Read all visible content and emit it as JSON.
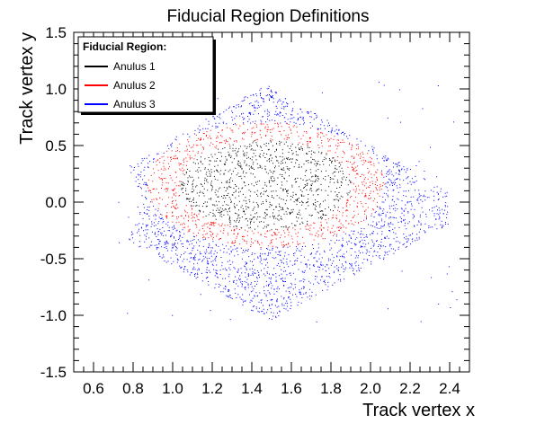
{
  "chart_data": {
    "type": "scatter",
    "title": "Fiducial Region Definitions",
    "xlabel": "Track vertex x",
    "ylabel": "Track vertex y",
    "xlim": [
      0.5,
      2.5
    ],
    "ylim": [
      -1.5,
      1.5
    ],
    "xticks": [
      "0.6",
      "0.8",
      "1.0",
      "1.2",
      "1.4",
      "1.6",
      "1.8",
      "2.0",
      "2.2",
      "2.4"
    ],
    "yticks": [
      "1.5",
      "1.0",
      "0.5",
      "0.0",
      "-0.5",
      "-1.0",
      "-1.5"
    ],
    "grid": false,
    "legend": {
      "title": "Fiducial Region:",
      "placement": "top-left",
      "entries": [
        {
          "name": "Anulus 1",
          "color": "#000000"
        },
        {
          "name": "Anulus 2",
          "color": "#ff0000"
        },
        {
          "name": "Anulus 3",
          "color": "#0000ff"
        }
      ]
    },
    "series": [
      {
        "name": "Anulus 3",
        "color": "#0000ff",
        "region": "polygon",
        "vertices": [
          [
            0.76,
            0.3
          ],
          [
            1.47,
            1.04
          ],
          [
            2.39,
            0.1
          ],
          [
            2.39,
            -0.2
          ],
          [
            1.49,
            -1.05
          ],
          [
            0.76,
            -0.33
          ],
          [
            0.86,
            0.0
          ]
        ]
      },
      {
        "name": "Anulus 2",
        "color": "#ff0000",
        "region": "ellipse",
        "center": [
          1.47,
          0.15
        ],
        "radii": [
          0.6,
          0.6
        ]
      },
      {
        "name": "Anulus 1",
        "color": "#000000",
        "region": "ellipse",
        "center": [
          1.47,
          0.15
        ],
        "radii": [
          0.43,
          0.43
        ]
      }
    ]
  }
}
